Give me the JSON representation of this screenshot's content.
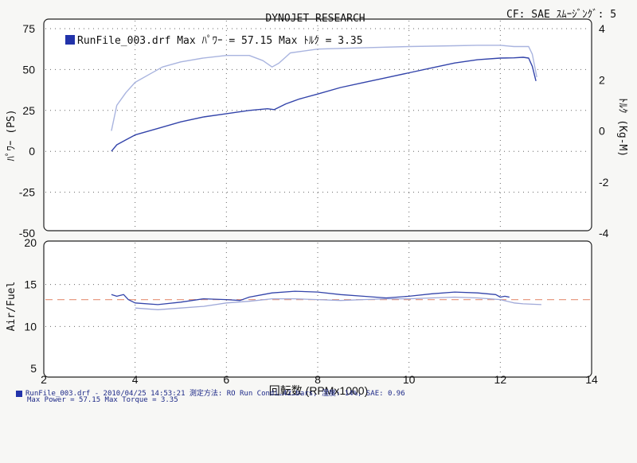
{
  "header": {
    "title": "DYNOJET  RESEARCH",
    "cf": "CF: SAE  ｽﾑｰｼﾞﾝｸﾞ: 5"
  },
  "legend": {
    "text": "RunFile_003.drf Max ﾊﾟﾜｰ = 57.15    Max ﾄﾙｸ = 3.35",
    "color": "#2233aa"
  },
  "footer": {
    "line1": "RunFile_003.drf - 2010/04/25 14:53:21  測定方法: RO  Run Condi…42…bars,  湿度: 14%, SAE: 0.96",
    "line2": "Max Power = 57.15  Max Torque = 3.35"
  },
  "colors": {
    "power": "#3344aa",
    "torque": "#a9b4df",
    "af": "#3344aa",
    "af2": "#9fa8d8",
    "target": "#e89c84"
  },
  "chart_data": [
    {
      "type": "line",
      "title": "",
      "xlabel": "回転数 (RPMx1000)",
      "ylabel": "ﾊﾟﾜｰ (PS)",
      "y2label": "ﾄﾙｸ (Kg-M)",
      "xlim": [
        2,
        14
      ],
      "ylim": [
        -50,
        75
      ],
      "y2lim": [
        -4,
        4
      ],
      "x_ticks": [
        2,
        4,
        6,
        8,
        10,
        12,
        14
      ],
      "y_ticks": [
        -50,
        -25,
        0,
        25,
        50,
        75
      ],
      "y2_ticks": [
        -4,
        -2,
        0,
        2,
        4
      ],
      "grid": true,
      "legend_position": "top-left",
      "series": [
        {
          "key": "power",
          "axis": "left",
          "x": [
            3.48,
            3.6,
            3.8,
            4.0,
            4.5,
            5.0,
            5.5,
            6.0,
            6.5,
            6.9,
            7.05,
            7.3,
            7.6,
            8.0,
            8.5,
            9.0,
            9.5,
            10.0,
            10.5,
            11.0,
            11.5,
            12.0,
            12.3,
            12.5,
            12.62,
            12.7,
            12.78
          ],
          "y": [
            0,
            4,
            7,
            10,
            14,
            18,
            21,
            23,
            25,
            26,
            25.5,
            29,
            32,
            35,
            39,
            42,
            45,
            48,
            51,
            54,
            56,
            57,
            57.15,
            57.5,
            57,
            52,
            43
          ]
        },
        {
          "key": "torque",
          "axis": "right",
          "x": [
            3.48,
            3.6,
            3.8,
            4.0,
            4.3,
            4.6,
            5.0,
            5.5,
            6.0,
            6.5,
            6.8,
            7.0,
            7.15,
            7.4,
            8.0,
            9.0,
            10.0,
            11.0,
            11.5,
            12.0,
            12.3,
            12.5,
            12.62,
            12.7,
            12.8
          ],
          "y": [
            0.0,
            1.0,
            1.5,
            1.9,
            2.2,
            2.5,
            2.7,
            2.85,
            2.95,
            2.95,
            2.75,
            2.5,
            2.65,
            3.05,
            3.2,
            3.25,
            3.3,
            3.33,
            3.35,
            3.35,
            3.3,
            3.3,
            3.3,
            3.0,
            2.1
          ]
        }
      ]
    },
    {
      "type": "line",
      "title": "",
      "xlabel": "回転数 (RPMx1000)",
      "ylabel": "Air/Fuel",
      "xlim": [
        2,
        14
      ],
      "ylim": [
        5,
        20
      ],
      "y_ticks": [
        5,
        10,
        15,
        20
      ],
      "target_af": 13.2,
      "grid": true,
      "series": [
        {
          "key": "af",
          "x": [
            3.48,
            3.6,
            3.75,
            3.85,
            4.0,
            4.5,
            5.0,
            5.5,
            6.0,
            6.3,
            6.5,
            6.8,
            7.0,
            7.5,
            8.0,
            8.5,
            9.0,
            9.5,
            10.0,
            10.5,
            11.0,
            11.5,
            11.9,
            12.0,
            12.1,
            12.2
          ],
          "y": [
            13.8,
            13.6,
            13.8,
            13.2,
            12.8,
            12.6,
            12.9,
            13.3,
            13.2,
            13.1,
            13.5,
            13.8,
            14.0,
            14.2,
            14.1,
            13.8,
            13.6,
            13.4,
            13.6,
            13.9,
            14.1,
            14.0,
            13.8,
            13.5,
            13.6,
            13.5
          ]
        },
        {
          "key": "af2",
          "x": [
            4.0,
            4.5,
            5.0,
            5.5,
            6.0,
            6.5,
            7.0,
            7.5,
            8.0,
            8.5,
            9.0,
            9.5,
            10.0,
            10.5,
            11.0,
            11.5,
            12.0,
            12.3,
            12.5,
            12.9
          ],
          "y": [
            12.2,
            12.0,
            12.2,
            12.4,
            12.8,
            13.0,
            13.3,
            13.3,
            13.2,
            13.1,
            13.2,
            13.3,
            13.3,
            13.4,
            13.5,
            13.4,
            13.2,
            12.8,
            12.7,
            12.6
          ]
        }
      ]
    }
  ]
}
